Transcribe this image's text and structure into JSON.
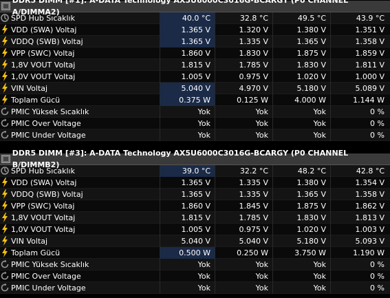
{
  "sections": [
    {
      "title": "DDR5 DIMM [#1]: A-DATA Technology AX5U6000C3016G-BCARGY (P0 CHANNEL A/DIMMA2)",
      "rows": [
        {
          "icon": "thermometer-icon",
          "label": "SPD Hub Sıcaklık",
          "v": [
            "40.0 °C",
            "32.8 °C",
            "49.5 °C",
            "43.9 °C"
          ],
          "hl": true
        },
        {
          "icon": "lightning-icon",
          "label": "VDD (SWA) Voltaj",
          "v": [
            "1.365 V",
            "1.320 V",
            "1.380 V",
            "1.351 V"
          ],
          "hl": true
        },
        {
          "icon": "lightning-icon",
          "label": "VDDQ (SWB) Voltaj",
          "v": [
            "1.365 V",
            "1.335 V",
            "1.365 V",
            "1.358 V"
          ],
          "hl": true
        },
        {
          "icon": "lightning-icon",
          "label": "VPP (SWC) Voltaj",
          "v": [
            "1.860 V",
            "1.830 V",
            "1.875 V",
            "1.859 V"
          ],
          "hl": false
        },
        {
          "icon": "lightning-icon",
          "label": "1,8V VOUT Voltaj",
          "v": [
            "1.815 V",
            "1.785 V",
            "1.830 V",
            "1.811 V"
          ],
          "hl": false
        },
        {
          "icon": "lightning-icon",
          "label": "1,0V VOUT Voltaj",
          "v": [
            "1.005 V",
            "0.975 V",
            "1.020 V",
            "1.000 V"
          ],
          "hl": false
        },
        {
          "icon": "lightning-icon",
          "label": "VIN Voltaj",
          "v": [
            "5.040 V",
            "4.970 V",
            "5.180 V",
            "5.089 V"
          ],
          "hl": true
        },
        {
          "icon": "lightning-icon",
          "label": "Toplam Gücü",
          "v": [
            "0.375 W",
            "0.125 W",
            "4.000 W",
            "1.144 W"
          ],
          "hl": true
        },
        {
          "icon": "clock-icon",
          "label": "PMIC Yüksek Sıcaklık",
          "v": [
            "Yok",
            "Yok",
            "Yok",
            "0 %"
          ],
          "hl": false
        },
        {
          "icon": "clock-icon",
          "label": "PMIC Over Voltage",
          "v": [
            "Yok",
            "Yok",
            "Yok",
            "0 %"
          ],
          "hl": false
        },
        {
          "icon": "clock-icon",
          "label": "PMIC Under Voltage",
          "v": [
            "Yok",
            "Yok",
            "Yok",
            "0 %"
          ],
          "hl": false
        }
      ]
    },
    {
      "title": "DDR5 DIMM [#3]: A-DATA Technology AX5U6000C3016G-BCARGY (P0 CHANNEL B/DIMMB2)",
      "rows": [
        {
          "icon": "thermometer-icon",
          "label": "SPD Hub Sıcaklık",
          "v": [
            "39.0 °C",
            "32.2 °C",
            "48.2 °C",
            "42.8 °C"
          ],
          "hl": true
        },
        {
          "icon": "lightning-icon",
          "label": "VDD (SWA) Voltaj",
          "v": [
            "1.365 V",
            "1.335 V",
            "1.380 V",
            "1.354 V"
          ],
          "hl": false
        },
        {
          "icon": "lightning-icon",
          "label": "VDDQ (SWB) Voltaj",
          "v": [
            "1.365 V",
            "1.335 V",
            "1.365 V",
            "1.358 V"
          ],
          "hl": false
        },
        {
          "icon": "lightning-icon",
          "label": "VPP (SWC) Voltaj",
          "v": [
            "1.860 V",
            "1.845 V",
            "1.875 V",
            "1.862 V"
          ],
          "hl": false
        },
        {
          "icon": "lightning-icon",
          "label": "1,8V VOUT Voltaj",
          "v": [
            "1.815 V",
            "1.785 V",
            "1.830 V",
            "1.813 V"
          ],
          "hl": false
        },
        {
          "icon": "lightning-icon",
          "label": "1,0V VOUT Voltaj",
          "v": [
            "1.005 V",
            "0.975 V",
            "1.020 V",
            "1.003 V"
          ],
          "hl": false
        },
        {
          "icon": "lightning-icon",
          "label": "VIN Voltaj",
          "v": [
            "5.040 V",
            "5.040 V",
            "5.180 V",
            "5.093 V"
          ],
          "hl": false
        },
        {
          "icon": "lightning-icon",
          "label": "Toplam Gücü",
          "v": [
            "0.500 W",
            "0.250 W",
            "3.750 W",
            "1.190 W"
          ],
          "hl": true
        },
        {
          "icon": "clock-icon",
          "label": "PMIC Yüksek Sıcaklık",
          "v": [
            "Yok",
            "Yok",
            "Yok",
            "0 %"
          ],
          "hl": false
        },
        {
          "icon": "clock-icon",
          "label": "PMIC Over Voltage",
          "v": [
            "Yok",
            "Yok",
            "Yok",
            "0 %"
          ],
          "hl": false
        },
        {
          "icon": "clock-icon",
          "label": "PMIC Under Voltage",
          "v": [
            "Yok",
            "Yok",
            "Yok",
            "0 %"
          ],
          "hl": false
        }
      ]
    }
  ],
  "colors": {
    "highlight": "#1a2a47",
    "header": "#3a3a3a",
    "lightning": "#f3c016",
    "icon_gray": "#9a9a9a"
  }
}
